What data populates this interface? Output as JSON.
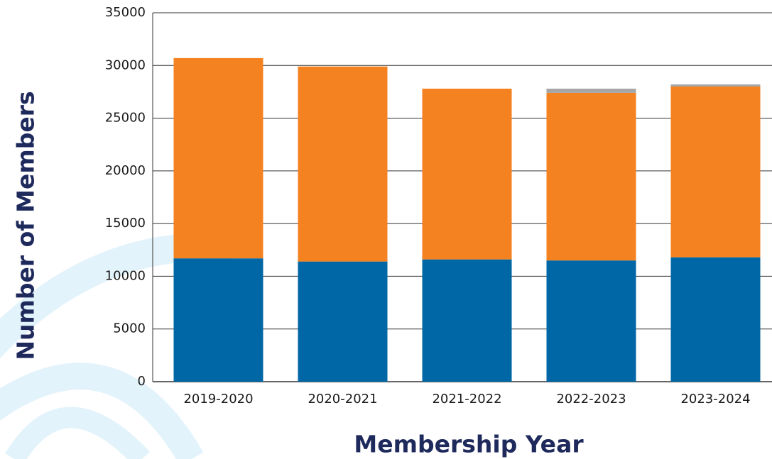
{
  "chart_data": {
    "type": "stacked_bar",
    "x_label": "Membership Year",
    "y_label": "Number of Members",
    "categories": [
      "2019-2020",
      "2020-2021",
      "2021-2022",
      "2022-2023",
      "2023-2024"
    ],
    "series": [
      {
        "color": "#0067a6",
        "values": [
          11700,
          11400,
          11600,
          11500,
          11800
        ]
      },
      {
        "color": "#f58220",
        "values": [
          19000,
          18500,
          16200,
          15900,
          16200
        ]
      },
      {
        "color": "#a6a6a6",
        "values": [
          0,
          0,
          0,
          400,
          200
        ]
      }
    ],
    "ylim": [
      0,
      35000
    ],
    "yticks": [
      0,
      5000,
      10000,
      15000,
      20000,
      25000,
      30000,
      35000
    ],
    "grid": true
  }
}
